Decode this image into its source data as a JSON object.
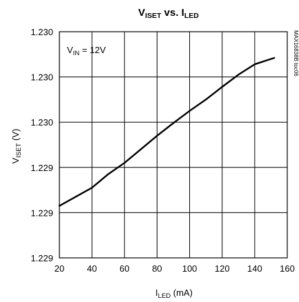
{
  "chart_data": {
    "type": "line",
    "title": {
      "main_1": "V",
      "sub_1": "ISET",
      "mid": " vs. I",
      "sub_2": "LED"
    },
    "xlabel": {
      "main": "I",
      "sub": "LED",
      "rest": " (mA)"
    },
    "ylabel": {
      "main": "V",
      "sub": "ISET",
      "rest": " (V)"
    },
    "annotation": {
      "main": "V",
      "sub": "IN",
      "rest": " = 12V"
    },
    "code": "MAX16838B toc06",
    "x_ticks": [
      20,
      40,
      60,
      80,
      100,
      120,
      140,
      160
    ],
    "x_tick_labels": [
      "20",
      "40",
      "60",
      "80",
      "100",
      "120",
      "140",
      "160"
    ],
    "y_ticks": [
      0,
      1,
      2,
      3,
      4,
      5
    ],
    "y_tick_labels": [
      "1.229",
      "1.229",
      "1.229",
      "1.230",
      "1.230",
      "1.230"
    ],
    "xlim": [
      20,
      160
    ],
    "ylim": [
      0,
      5
    ],
    "grid": true,
    "series": [
      {
        "x": [
          20,
          30,
          40,
          50,
          60,
          70,
          80,
          90,
          100,
          110,
          120,
          130,
          140,
          152
        ],
        "y": [
          1.15,
          1.35,
          1.55,
          1.85,
          2.1,
          2.4,
          2.7,
          2.98,
          3.25,
          3.5,
          3.78,
          4.05,
          4.28,
          4.42
        ]
      }
    ]
  }
}
